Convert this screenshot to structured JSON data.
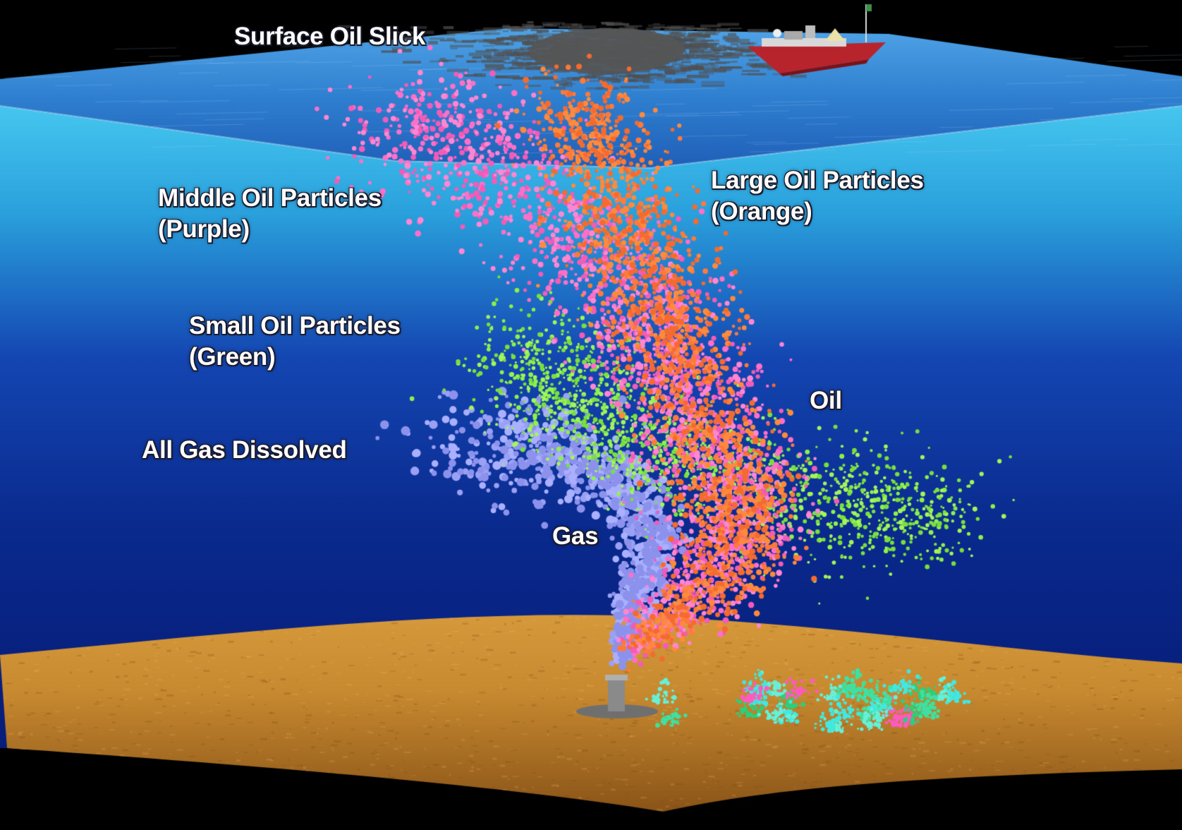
{
  "labels": {
    "surface_oil_slick": "Surface Oil Slick",
    "middle_oil_particles": "Middle Oil Particles",
    "middle_oil_particles_color": "(Purple)",
    "large_oil_particles": "Large Oil Particles",
    "large_oil_particles_color": "(Orange)",
    "small_oil_particles": "Small Oil Particles",
    "small_oil_particles_color": "(Green)",
    "all_gas_dissolved": "All Gas Dissolved",
    "oil": "Oil",
    "gas": "Gas"
  },
  "colors": {
    "sky": "#000000",
    "ocean_surface": "#2f7fd0",
    "water_top": "#45c6ef",
    "water_bottom": "#071e7a",
    "seabed": "#c88a30",
    "oil_slick": "#555555",
    "ship_hull": "#b8242c",
    "large_particles": "#ff7a3a",
    "middle_particles": "#ff6fc8",
    "small_particles": "#8cf24a",
    "gas_bubbles": "#9aa0f4"
  }
}
